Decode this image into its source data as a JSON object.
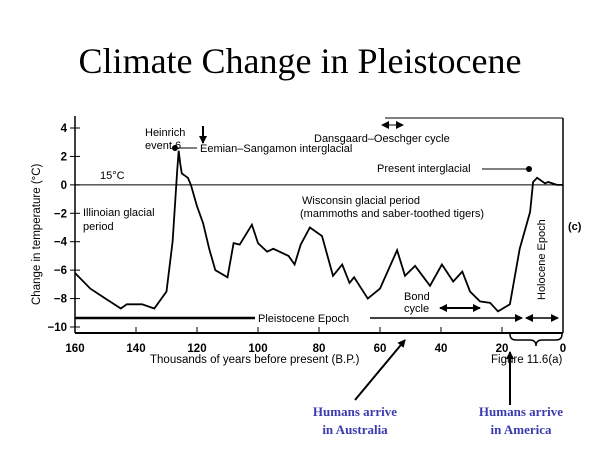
{
  "slide_title": "Climate Change in Pleistocene",
  "chart_data": {
    "type": "line",
    "xlabel": "Thousands of years before present (B.P.)",
    "ylabel": "Change in temperature (°C)",
    "xlim": [
      160,
      0
    ],
    "ylim": [
      -10,
      4
    ],
    "x_ticks": [
      160,
      140,
      120,
      100,
      80,
      60,
      40,
      20,
      0
    ],
    "y_ticks": [
      4,
      2,
      0,
      -2,
      -4,
      -6,
      -8,
      -10
    ],
    "reference_line": {
      "y": 0,
      "label": "15°C"
    },
    "grid": false,
    "series": [
      {
        "x": [
          160,
          155,
          150,
          145,
          143,
          138,
          134,
          130,
          128,
          126.5,
          126,
          125.5,
          125,
          123,
          122,
          120,
          118,
          116,
          114,
          110,
          108,
          106,
          102,
          100,
          97,
          95,
          90,
          88,
          86,
          83,
          79,
          75.4,
          72.4,
          70,
          68.5,
          64,
          60,
          54.4,
          51.8,
          48.5,
          43.6,
          39.7,
          36,
          33,
          30.5,
          27.2,
          23.9,
          21.3,
          17.4,
          14.2,
          10.8,
          9.8,
          8.5,
          5.9,
          4.9,
          2,
          0
        ],
        "y": [
          -6.2,
          -7.3,
          -8,
          -8.7,
          -8.4,
          -8.4,
          -8.7,
          -7.5,
          -4,
          1,
          2.4,
          1.5,
          0.8,
          0.5,
          0,
          -1.5,
          -2.7,
          -4.5,
          -6,
          -6.5,
          -4.1,
          -4.2,
          -2.8,
          -4.1,
          -4.7,
          -4.5,
          -5,
          -5.6,
          -4.2,
          -3,
          -3.6,
          -6.4,
          -5.6,
          -6.9,
          -6.5,
          -8,
          -7.3,
          -4.6,
          -6.4,
          -5.7,
          -7.1,
          -5.6,
          -6.8,
          -6.1,
          -7.5,
          -8.2,
          -8.3,
          -8.9,
          -8.4,
          -4.5,
          -1.9,
          0.2,
          0.5,
          0.1,
          0.2,
          0,
          0
        ]
      }
    ],
    "annotations": {
      "heinrich": "Heinrich event 6",
      "eemian": "Eemian–Sangamon interglacial",
      "dansgaard": "Dansgaard–Oeschger cycle",
      "present": "Present interglacial",
      "wisconsin_1": "Wisconsin glacial period",
      "wisconsin_2": "(mammoths and saber-toothed tigers)",
      "illinoian_1": "Illinoian glacial",
      "illinoian_2": "period",
      "pleistocene": "Pleistocene Epoch",
      "holocene": "Holocene Epoch",
      "bond_1": "Bond",
      "bond_2": "cycle",
      "panel": "(c)",
      "figure": "Figure 11.6(a)"
    }
  },
  "callouts": {
    "australia_1": "Humans arrive",
    "australia_2": "in Australia",
    "america_1": "Humans arrive",
    "america_2": "in America"
  }
}
